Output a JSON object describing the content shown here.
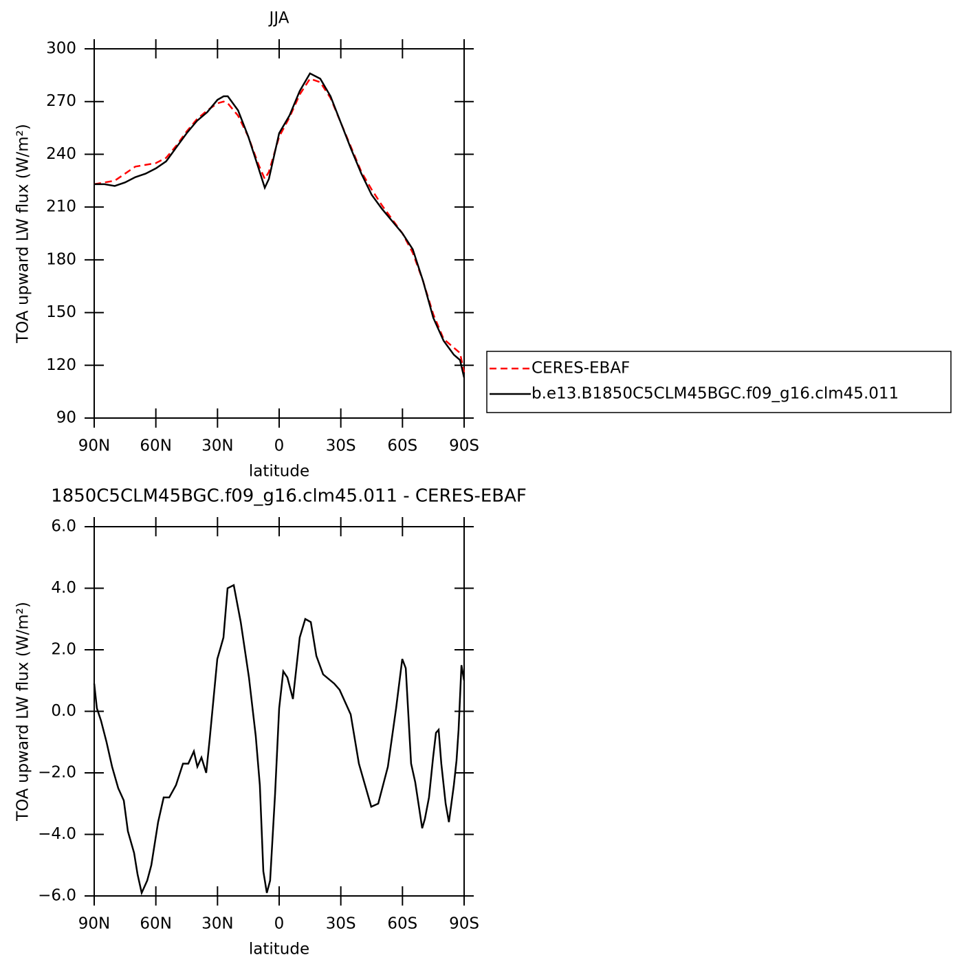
{
  "chart_data": [
    {
      "type": "line",
      "title": "JJA",
      "xlabel": "latitude",
      "ylabel": "TOA upward LW flux (W/m²)",
      "x": [
        90,
        85,
        80,
        75,
        70,
        65,
        60,
        55,
        50,
        45,
        40,
        35,
        30,
        27,
        25,
        20,
        15,
        10,
        7,
        5,
        0,
        -5,
        -10,
        -15,
        -20,
        -25,
        -30,
        -35,
        -40,
        -45,
        -50,
        -55,
        -60,
        -65,
        -70,
        -75,
        -80,
        -85,
        -88,
        -90
      ],
      "series": [
        {
          "name": "CERES-EBAF",
          "color": "#ff0000",
          "dashed": true,
          "values": [
            223,
            224,
            225,
            229,
            233,
            234,
            235,
            238,
            245,
            253,
            260,
            265,
            269,
            270,
            269,
            262,
            250,
            234,
            226,
            230,
            250,
            261,
            274,
            283,
            281,
            272,
            258,
            244,
            230,
            220,
            211,
            203,
            195,
            184,
            168,
            149,
            135,
            130,
            127,
            116
          ]
        },
        {
          "name": "b.e13.B1850C5CLM45BGC.f09_g16.clm45.011",
          "color": "#000000",
          "dashed": false,
          "values": [
            223,
            223,
            222,
            224,
            227,
            229,
            232,
            236,
            244,
            252,
            259,
            264,
            271,
            273,
            273,
            265,
            250,
            232,
            221,
            226,
            252,
            262,
            276,
            286,
            283,
            273,
            258,
            243,
            229,
            217,
            209,
            202,
            195,
            186,
            168,
            147,
            134,
            126,
            123,
            113
          ]
        }
      ],
      "xlim": [
        90,
        -90
      ],
      "xticks": [
        {
          "value": 90,
          "label": "90N"
        },
        {
          "value": 60,
          "label": "60N"
        },
        {
          "value": 30,
          "label": "30N"
        },
        0,
        {
          "value": -30,
          "label": "30S"
        },
        {
          "value": -60,
          "label": "60S"
        },
        {
          "value": -90,
          "label": "90S"
        }
      ],
      "ylim": [
        90,
        300
      ],
      "yticks": [
        90,
        120,
        150,
        180,
        210,
        240,
        270,
        300
      ],
      "legend": "right"
    },
    {
      "type": "line",
      "title": "1850C5CLM45BGC.f09_g16.clm45.011 - CERES-EBAF",
      "xlabel": "latitude",
      "ylabel": "TOA upward LW flux (W/m²)",
      "x": [
        90,
        88.7,
        86.7,
        84,
        81.3,
        78.3,
        75.6,
        73.6,
        70.6,
        68.9,
        66.9,
        64.2,
        62.2,
        58.9,
        56.2,
        53.5,
        50.2,
        46.8,
        44.2,
        41.5,
        39.8,
        37.8,
        35.5,
        33.8,
        30.1,
        28.8,
        27.1,
        25.1,
        22.1,
        18.7,
        14.7,
        11.4,
        9.4,
        7.7,
        6,
        4.4,
        2,
        0,
        -2,
        -4,
        -6.7,
        -10,
        -12.7,
        -15.4,
        -18.1,
        -21.4,
        -26.8,
        -29.4,
        -34.8,
        -38.8,
        -44.8,
        -48.2,
        -52.9,
        -56.9,
        -59.9,
        -61.6,
        -64.2,
        -66.2,
        -69.6,
        -70.9,
        -72.9,
        -74.9,
        -76.3,
        -77.6,
        -78.9,
        -81,
        -82.6,
        -85,
        -86.3,
        -87.3,
        -88.7,
        -90
      ],
      "series": [
        {
          "color": "#000000",
          "dashed": false,
          "values": [
            0.9,
            0.1,
            -0.3,
            -1.0,
            -1.8,
            -2.5,
            -2.9,
            -3.9,
            -4.6,
            -5.3,
            -5.9,
            -5.5,
            -5.0,
            -3.6,
            -2.8,
            -2.8,
            -2.4,
            -1.7,
            -1.7,
            -1.3,
            -1.8,
            -1.5,
            -2.0,
            -0.9,
            1.7,
            2.0,
            2.4,
            4.0,
            4.1,
            2.9,
            1.1,
            -0.8,
            -2.4,
            -5.2,
            -5.9,
            -5.5,
            -2.7,
            0.1,
            1.3,
            1.1,
            0.4,
            2.4,
            3.0,
            2.9,
            1.8,
            1.2,
            0.9,
            0.7,
            -0.1,
            -1.7,
            -3.1,
            -3.0,
            -1.8,
            0.1,
            1.7,
            1.4,
            -1.7,
            -2.3,
            -3.8,
            -3.5,
            -2.8,
            -1.5,
            -0.7,
            -0.6,
            -1.7,
            -3.0,
            -3.6,
            -2.4,
            -1.6,
            -0.6,
            1.5,
            1.0
          ]
        }
      ],
      "xlim": [
        90,
        -90
      ],
      "xticks": [
        {
          "value": 90,
          "label": "90N"
        },
        {
          "value": 60,
          "label": "60N"
        },
        {
          "value": 30,
          "label": "30N"
        },
        0,
        {
          "value": -30,
          "label": "30S"
        },
        {
          "value": -60,
          "label": "60S"
        },
        {
          "value": -90,
          "label": "90S"
        }
      ],
      "ylim": [
        -6,
        6
      ],
      "yticks": [
        {
          "value": -6,
          "label": "−6.0"
        },
        {
          "value": -4,
          "label": "−4.0"
        },
        {
          "value": -2,
          "label": "−2.0"
        },
        {
          "value": 0,
          "label": "0.0"
        },
        {
          "value": 2,
          "label": "2.0"
        },
        {
          "value": 4,
          "label": "4.0"
        },
        {
          "value": 6,
          "label": "6.0"
        }
      ]
    }
  ]
}
